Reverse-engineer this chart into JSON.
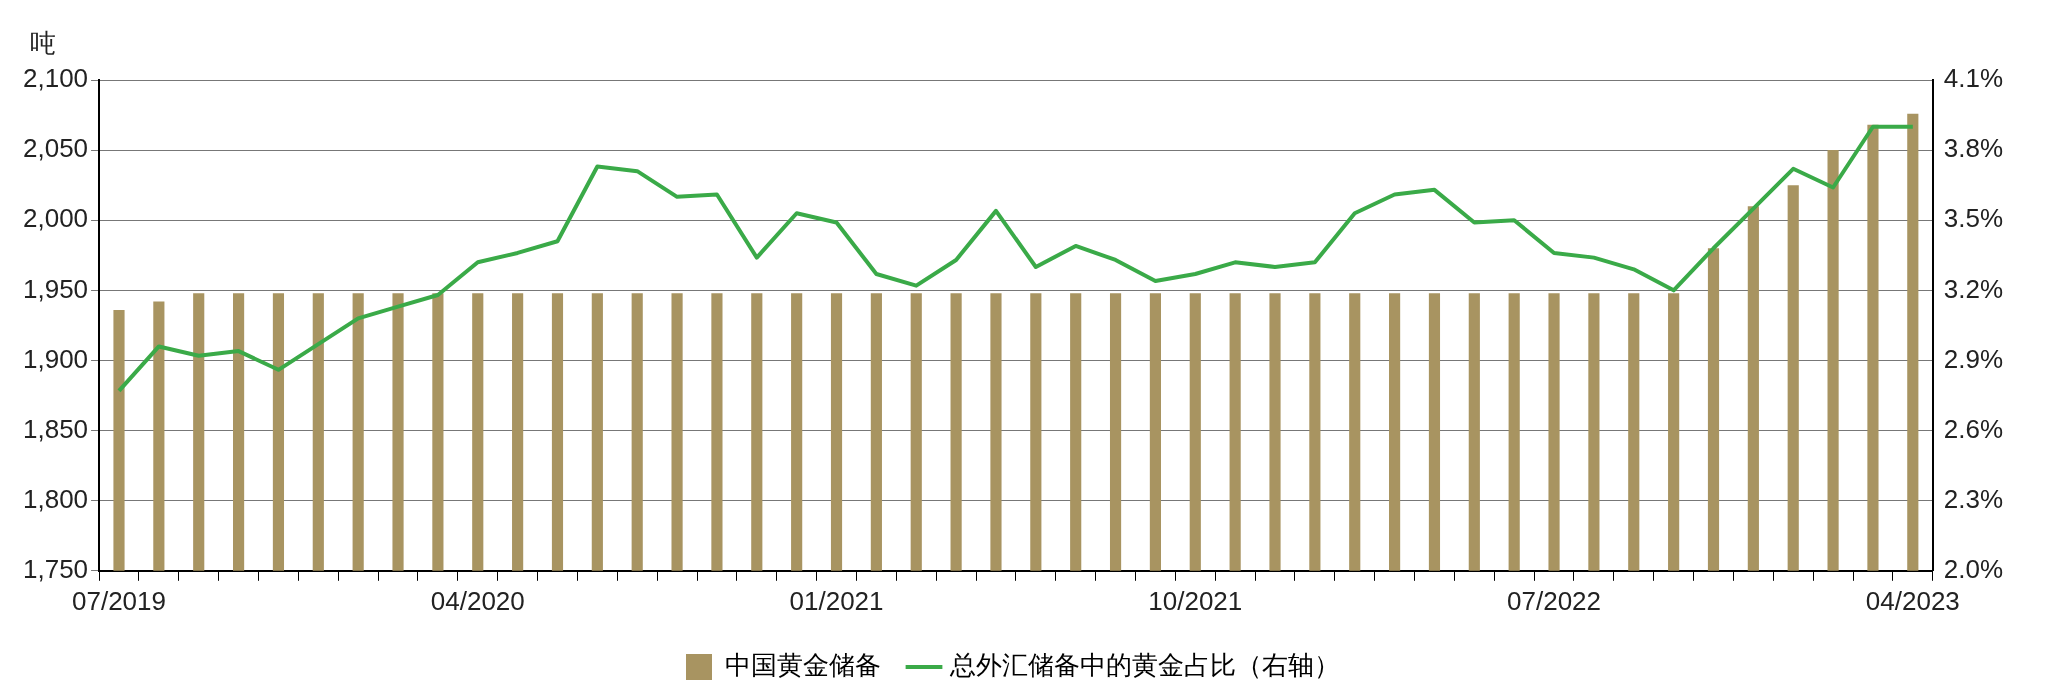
{
  "chart_data": {
    "type": "bar",
    "ylabel": "吨",
    "categories": [
      "07/2019",
      null,
      null,
      null,
      null,
      null,
      null,
      null,
      null,
      "04/2020",
      null,
      null,
      null,
      null,
      null,
      null,
      null,
      null,
      "01/2021",
      null,
      null,
      null,
      null,
      null,
      null,
      null,
      null,
      "10/2021",
      null,
      null,
      null,
      null,
      null,
      null,
      null,
      null,
      "07/2022",
      null,
      null,
      null,
      null,
      null,
      null,
      null,
      null,
      "04/2023"
    ],
    "series": [
      {
        "name": "中国黄金储备",
        "color": "#a89461",
        "values": [
          1936,
          1942,
          1948,
          1948,
          1948,
          1948,
          1948,
          1948,
          1948,
          1948,
          1948,
          1948,
          1948,
          1948,
          1948,
          1948,
          1948,
          1948,
          1948,
          1948,
          1948,
          1948,
          1948,
          1948,
          1948,
          1948,
          1948,
          1948,
          1948,
          1948,
          1948,
          1948,
          1948,
          1948,
          1948,
          1948,
          1948,
          1948,
          1948,
          1948,
          1980,
          2010,
          2025,
          2050,
          2068,
          2076
        ]
      },
      {
        "name": "总外汇储备中的黄金占比（右轴）",
        "type": "line",
        "axis": "y2",
        "color": "#3aaa48",
        "values": [
          2.77,
          2.96,
          2.92,
          2.94,
          2.86,
          2.97,
          3.08,
          3.13,
          3.18,
          3.32,
          3.36,
          3.41,
          3.73,
          3.71,
          3.6,
          3.61,
          3.34,
          3.53,
          3.49,
          3.27,
          3.22,
          3.33,
          3.54,
          3.3,
          3.39,
          3.33,
          3.24,
          3.27,
          3.32,
          3.3,
          3.32,
          3.53,
          3.61,
          3.63,
          3.49,
          3.5,
          3.36,
          3.34,
          3.29,
          3.2,
          3.38,
          3.55,
          3.72,
          3.64,
          3.9,
          3.9
        ]
      }
    ],
    "ylim": [
      1750,
      2100
    ],
    "yticks": [
      {
        "value": 1750,
        "label": "1,750"
      },
      {
        "value": 1800,
        "label": "1,800"
      },
      {
        "value": 1850,
        "label": "1,850"
      },
      {
        "value": 1900,
        "label": "1,900"
      },
      {
        "value": 1950,
        "label": "1,950"
      },
      {
        "value": 2000,
        "label": "2,000"
      },
      {
        "value": 2050,
        "label": "2,050"
      },
      {
        "value": 2100,
        "label": "2,100"
      }
    ],
    "y2lim": [
      2.0,
      4.1
    ],
    "y2ticks": [
      {
        "value": 2.0,
        "label": "2.0%"
      },
      {
        "value": 2.3,
        "label": "2.3%"
      },
      {
        "value": 2.6,
        "label": "2.6%"
      },
      {
        "value": 2.9,
        "label": "2.9%"
      },
      {
        "value": 3.2,
        "label": "3.2%"
      },
      {
        "value": 3.5,
        "label": "3.5%"
      },
      {
        "value": 3.8,
        "label": "3.8%"
      },
      {
        "value": 4.1,
        "label": "4.1%"
      }
    ],
    "grid": "y",
    "legend": "bottom",
    "marker": "none",
    "line_style": "solid"
  }
}
